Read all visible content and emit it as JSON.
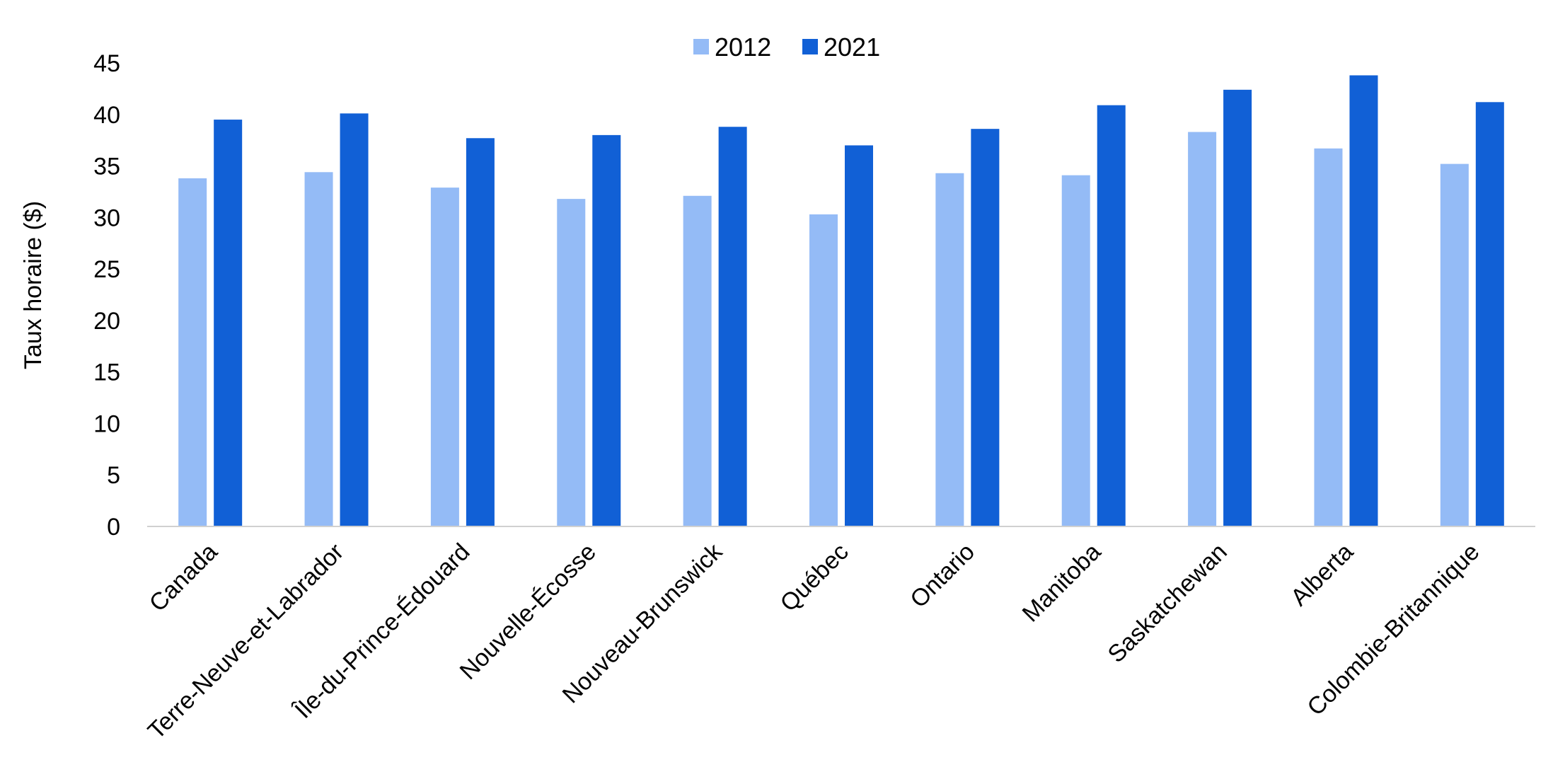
{
  "chart_data": {
    "type": "bar",
    "ylabel": "Taux horaire ($)",
    "xlabel": "",
    "ylim": [
      0,
      45
    ],
    "yticks": [
      0,
      5,
      10,
      15,
      20,
      25,
      30,
      35,
      40,
      45
    ],
    "grid": false,
    "legend_position": "top-center",
    "categories": [
      "Canada",
      "Terre-Neuve-et-Labrador",
      "Île-du-Prince-Édouard",
      "Nouvelle-Écosse",
      "Nouveau-Brunswick",
      "Québec",
      "Ontario",
      "Manitoba",
      "Saskatchewan",
      "Alberta",
      "Colombie-Britannique"
    ],
    "series": [
      {
        "name": "2012",
        "color": "#94bbf6",
        "values": [
          33.8,
          34.4,
          32.9,
          31.8,
          32.1,
          30.3,
          34.3,
          34.1,
          38.3,
          36.7,
          35.2
        ]
      },
      {
        "name": "2021",
        "color": "#1160d6",
        "values": [
          39.5,
          40.1,
          37.7,
          38.0,
          38.8,
          37.0,
          38.6,
          40.9,
          42.4,
          43.8,
          41.2
        ]
      }
    ]
  }
}
